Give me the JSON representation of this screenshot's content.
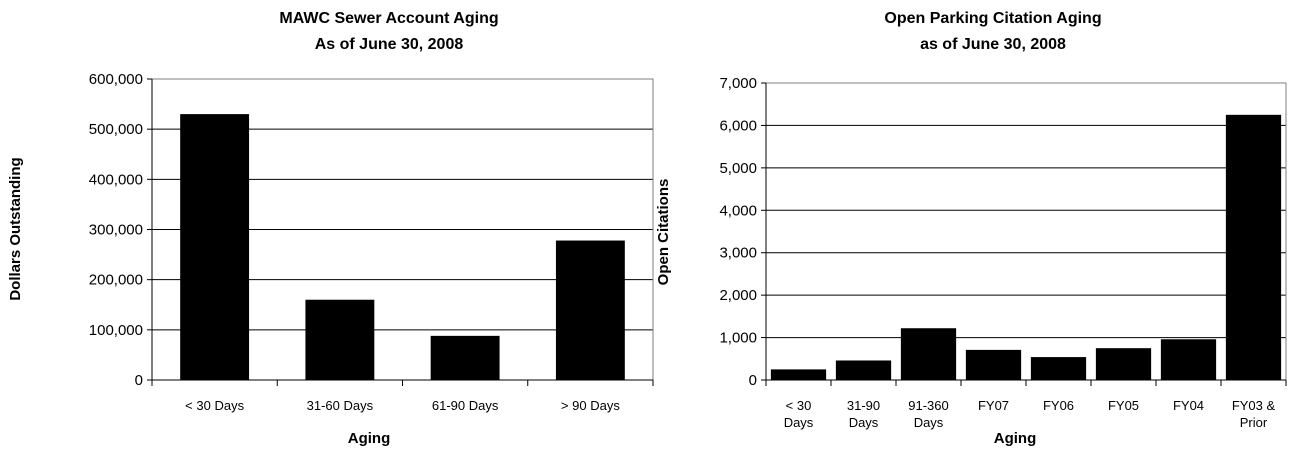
{
  "chart_data": [
    {
      "type": "bar",
      "title": [
        "MAWC Sewer Account Aging",
        "As of June 30, 2008"
      ],
      "xlabel": "Aging",
      "ylabel": "Dollars Outstanding",
      "categories": [
        [
          "< 30 Days"
        ],
        [
          "31-60 Days"
        ],
        [
          "61-90 Days"
        ],
        [
          "> 90 Days"
        ]
      ],
      "values": [
        530000,
        160000,
        88000,
        278000
      ],
      "ylim": [
        0,
        600000
      ],
      "yticks": [
        0,
        100000,
        200000,
        300000,
        400000,
        500000,
        600000
      ],
      "ytick_labels": [
        "0",
        "100,000",
        "200,000",
        "300,000",
        "400,000",
        "500,000",
        "600,000"
      ],
      "grid": true,
      "bar_color": "#000000"
    },
    {
      "type": "bar",
      "title": [
        "Open Parking Citation Aging",
        "as of June 30, 2008"
      ],
      "xlabel": "Aging",
      "ylabel": "Open Citations",
      "categories": [
        [
          "< 30",
          "Days"
        ],
        [
          "31-90",
          "Days"
        ],
        [
          "91-360",
          "Days"
        ],
        [
          "FY07"
        ],
        [
          "FY06"
        ],
        [
          "FY05"
        ],
        [
          "FY04"
        ],
        [
          "FY03 &",
          "Prior"
        ]
      ],
      "values": [
        250,
        460,
        1220,
        710,
        540,
        750,
        960,
        6250
      ],
      "ylim": [
        0,
        7000
      ],
      "yticks": [
        0,
        1000,
        2000,
        3000,
        4000,
        5000,
        6000,
        7000
      ],
      "ytick_labels": [
        "0",
        "1,000",
        "2,000",
        "3,000",
        "4,000",
        "5,000",
        "6,000",
        "7,000"
      ],
      "grid": true,
      "bar_color": "#000000"
    }
  ]
}
